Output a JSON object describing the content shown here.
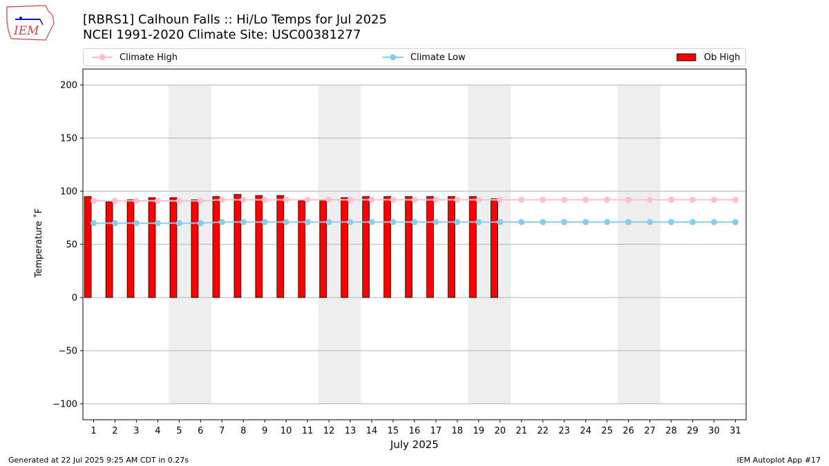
{
  "title": {
    "line1": "[RBRS1] Calhoun Falls :: Hi/Lo Temps for Jul 2025",
    "line2": "NCEI 1991-2020 Climate Site: USC00381277"
  },
  "logo": {
    "text": "IEM"
  },
  "legend": {
    "climate_high": "Climate High",
    "climate_low": "Climate Low",
    "ob_high": "Ob High"
  },
  "footer": {
    "left": "Generated at 22 Jul 2025 9:25 AM CDT in 0.27s",
    "right": "IEM Autoplot App #17"
  },
  "colors": {
    "climate_high": "#ffc0cb",
    "climate_low": "#87ceeb",
    "ob_high": "#ff0000",
    "weekend_shade": "#eeeeee"
  },
  "chart_data": {
    "type": "bar",
    "xlabel": "July 2025",
    "ylabel": "Temperature ˚F",
    "ylim": [
      -115,
      215
    ],
    "xlim": [
      0.5,
      31.5
    ],
    "yticks": [
      -100,
      -50,
      0,
      50,
      100,
      150,
      200
    ],
    "categories": [
      "1",
      "2",
      "3",
      "4",
      "5",
      "6",
      "7",
      "8",
      "9",
      "10",
      "11",
      "12",
      "13",
      "14",
      "15",
      "16",
      "17",
      "18",
      "19",
      "20",
      "21",
      "22",
      "23",
      "24",
      "25",
      "26",
      "27",
      "28",
      "29",
      "30",
      "31"
    ],
    "grid": true,
    "weekend_days": [
      5,
      6,
      12,
      13,
      19,
      20,
      26,
      27
    ],
    "legend_placement": "top",
    "series": [
      {
        "name": "Ob High",
        "type": "bar",
        "values": [
          95,
          90,
          92,
          94,
          94,
          92,
          95,
          97,
          96,
          96,
          91,
          92,
          94,
          95,
          95,
          95,
          95,
          95,
          95,
          93,
          null,
          null,
          null,
          null,
          null,
          null,
          null,
          null,
          null,
          null,
          null
        ]
      },
      {
        "name": "Climate High",
        "type": "line",
        "values": [
          91,
          91,
          91,
          91,
          91,
          91,
          92,
          92,
          92,
          92,
          92,
          92,
          92,
          92,
          92,
          92,
          92,
          92,
          92,
          92,
          92,
          92,
          92,
          92,
          92,
          92,
          92,
          92,
          92,
          92,
          92
        ]
      },
      {
        "name": "Climate Low",
        "type": "line",
        "values": [
          70,
          70,
          70,
          70,
          70,
          70,
          71,
          71,
          71,
          71,
          71,
          71,
          71,
          71,
          71,
          71,
          71,
          71,
          71,
          71,
          71,
          71,
          71,
          71,
          71,
          71,
          71,
          71,
          71,
          71,
          71
        ]
      }
    ]
  }
}
